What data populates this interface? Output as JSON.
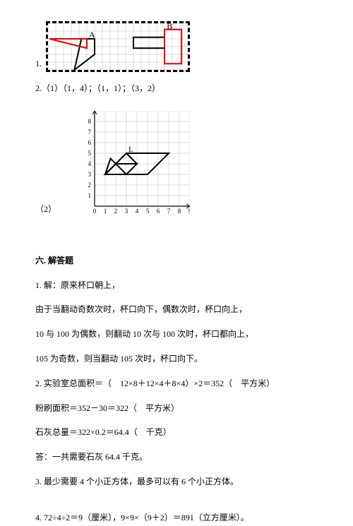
{
  "figure1": {
    "number_label": "1.",
    "grid": {
      "cols": 18,
      "rows": 6,
      "cell": 11,
      "line_color": "#bdbdbd",
      "background": "#ffffff",
      "border_dash_color": "#000000"
    },
    "labels": {
      "A": "A",
      "B": "B"
    },
    "label_fontsize": 12,
    "shapes": {
      "red_triangle": {
        "color": "#e60000",
        "width": 2,
        "pts": [
          [
            0.2,
            2
          ],
          [
            5,
            3.2
          ],
          [
            5,
            2
          ]
        ]
      },
      "red_rect": {
        "color": "#e60000",
        "width": 2,
        "pts": [
          [
            15,
            0.8
          ],
          [
            17.2,
            0.8
          ],
          [
            17.2,
            5.2
          ],
          [
            15,
            5.2
          ]
        ]
      },
      "black_poly_left": {
        "color": "#000000",
        "width": 2,
        "pts": [
          [
            4.3,
            2
          ],
          [
            3.4,
            6
          ],
          [
            6,
            4
          ],
          [
            6,
            2
          ]
        ]
      },
      "black_rect_right": {
        "color": "#000000",
        "width": 2,
        "pts": [
          [
            11,
            1.8
          ],
          [
            15,
            1.8
          ],
          [
            15,
            3.2
          ],
          [
            11,
            3.2
          ]
        ]
      }
    }
  },
  "line2": "2.（1）（1，4）；（1，1）；（3，2）",
  "figure2": {
    "label_left": "（2）",
    "grid": {
      "size": 9,
      "cell": 15,
      "line_color": "#bdbdbd",
      "axis_color": "#000000",
      "background": "#ffffff"
    },
    "axis_ticks_x": [
      "0",
      "1",
      "2",
      "3",
      "4",
      "5",
      "6",
      "7",
      "8",
      "9"
    ],
    "axis_ticks_y": [
      "1",
      "2",
      "3",
      "4",
      "5",
      "6",
      "7",
      "8"
    ],
    "tick_fontsize": 9,
    "label_L": "L",
    "shapes": {
      "outer_paral": {
        "color": "#000000",
        "width": 2,
        "pts": [
          [
            1,
            3
          ],
          [
            3,
            5
          ],
          [
            7,
            5
          ],
          [
            5,
            3
          ]
        ]
      },
      "inner_paral": {
        "color": "#000000",
        "width": 2,
        "pts": [
          [
            1,
            3
          ],
          [
            2,
            4
          ],
          [
            4,
            4
          ],
          [
            3,
            3
          ]
        ]
      },
      "diag": {
        "color": "#000000",
        "width": 2,
        "pts": [
          [
            3,
            5
          ],
          [
            4,
            4
          ]
        ]
      },
      "tri1": {
        "color": "#000000",
        "width": 2,
        "pts": [
          [
            1,
            3
          ],
          [
            3,
            3
          ],
          [
            1.5,
            4.5
          ]
        ]
      }
    }
  },
  "section6": {
    "title": "六. 解答题",
    "q1_l1": "1. 解：原来杯口朝上，",
    "q1_l2": "由于当翻动奇数次时，杯口向下，偶数次时，杯口向上，",
    "q1_l3": "10 与 100 为偶数，则翻动 10 次与 100 次时，杯口都向上，",
    "q1_l4": "105 为奇数，则当翻动 105 次时，杯口向下。",
    "q2_l1": "2. 实验室总面积＝（　12×8＋12×4＋8×4）×2＝352（　平方米）",
    "q2_l2": "粉刷面积＝352－30＝322（　平方米）",
    "q2_l3": "石灰总量＝322×0.2＝64.4（　千克）",
    "q2_l4": "答：一共需要石灰 64.4 千克。",
    "q3": "3. 最少需要 4 个小正方体，最多可以有 6 个小正方体。",
    "q4": "4. 72÷4÷2＝9（厘米），9×9×（9＋2）＝891（立方厘米）。"
  }
}
